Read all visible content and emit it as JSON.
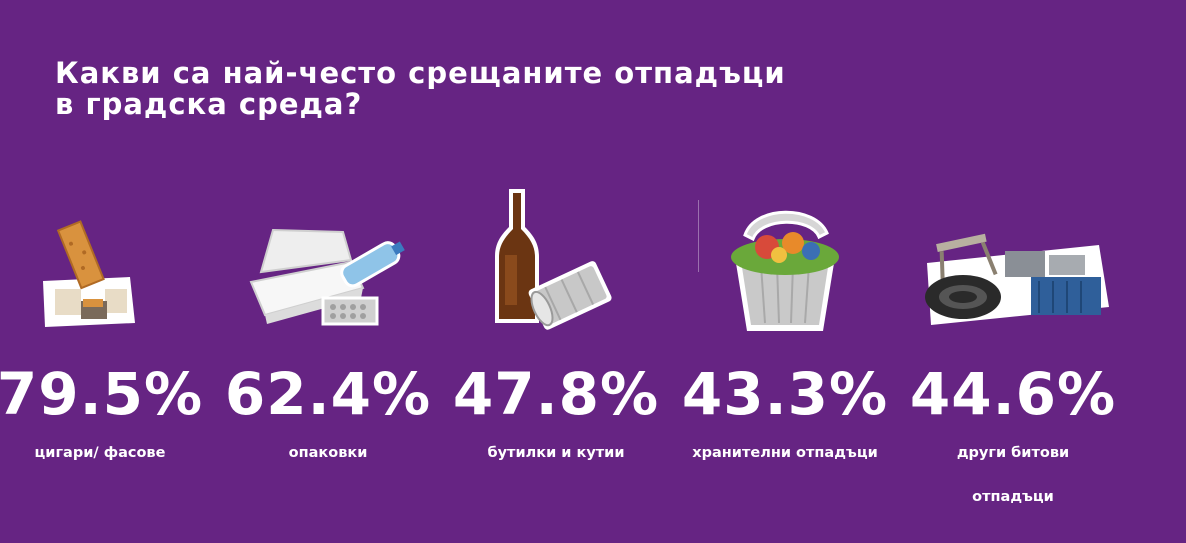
{
  "chart_data": {
    "type": "table",
    "title": "Какви са най-често срещаните отпадъци в градска среда?",
    "title_lines": [
      "Какви са най-често срещаните отпадъци",
      "в градска среда?"
    ],
    "categories": [
      "цигари/ фасове",
      "опаковки",
      "бутилки и кутии",
      "хранителни отпадъци",
      "други битови отпадъци"
    ],
    "values": [
      79.5,
      62.4,
      47.8,
      43.3,
      44.6
    ],
    "unit": "%",
    "items": [
      {
        "value_text": "79.5%",
        "label": "цигари/ фасове",
        "icon": "cigarette-butt-icon"
      },
      {
        "value_text": "62.4%",
        "label": "опаковки",
        "icon": "packaging-icon"
      },
      {
        "value_text": "47.8%",
        "label": "бутилки и кутии",
        "icon": "bottle-and-can-icon"
      },
      {
        "value_text": "43.3%",
        "label": "хранителни отпадъци",
        "icon": "food-waste-bin-icon"
      },
      {
        "value_text": "44.6%",
        "label": "други битови отпадъци",
        "icon": "household-waste-icon"
      }
    ]
  },
  "colors": {
    "background": "#662483",
    "text": "#ffffff"
  }
}
